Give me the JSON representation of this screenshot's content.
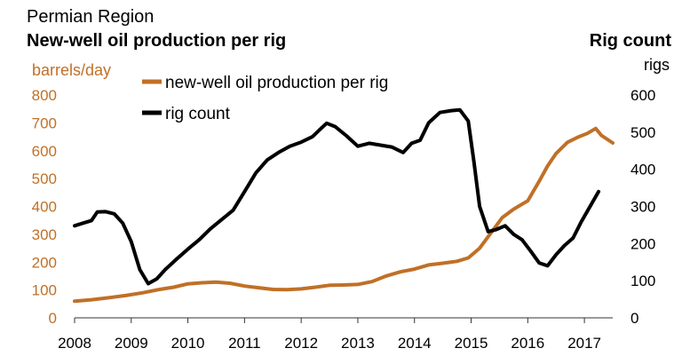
{
  "region": "Permian Region",
  "chart_data": {
    "type": "line",
    "title": "New-well oil production per rig",
    "right_title": "Rig count",
    "left_unit": "barrels/day",
    "right_unit": "rigs",
    "left_axis": {
      "min": 0,
      "max": 800,
      "ticks": [
        "0",
        "100",
        "200",
        "300",
        "400",
        "500",
        "600",
        "700",
        "800"
      ]
    },
    "right_axis": {
      "min": 0,
      "max": 600,
      "ticks": [
        "0",
        "100",
        "200",
        "300",
        "400",
        "500",
        "600"
      ]
    },
    "x_axis": {
      "min": 2008,
      "max": 2017.5,
      "ticks": [
        "2008",
        "2009",
        "2010",
        "2011",
        "2012",
        "2013",
        "2014",
        "2015",
        "2016",
        "2017"
      ]
    },
    "grid": false,
    "legend_position": "top-center",
    "series": [
      {
        "name": "new-well oil production per rig",
        "axis": "left",
        "color": "#c07027",
        "points": [
          [
            2008.0,
            60
          ],
          [
            2008.3,
            65
          ],
          [
            2008.6,
            72
          ],
          [
            2008.9,
            80
          ],
          [
            2009.2,
            90
          ],
          [
            2009.5,
            102
          ],
          [
            2009.75,
            110
          ],
          [
            2010.0,
            122
          ],
          [
            2010.25,
            126
          ],
          [
            2010.5,
            128
          ],
          [
            2010.75,
            124
          ],
          [
            2011.0,
            114
          ],
          [
            2011.25,
            108
          ],
          [
            2011.5,
            102
          ],
          [
            2011.75,
            101
          ],
          [
            2012.0,
            104
          ],
          [
            2012.25,
            110
          ],
          [
            2012.5,
            117
          ],
          [
            2012.75,
            118
          ],
          [
            2013.0,
            120
          ],
          [
            2013.25,
            130
          ],
          [
            2013.5,
            150
          ],
          [
            2013.75,
            165
          ],
          [
            2014.0,
            175
          ],
          [
            2014.25,
            190
          ],
          [
            2014.5,
            196
          ],
          [
            2014.75,
            203
          ],
          [
            2014.95,
            215
          ],
          [
            2015.15,
            250
          ],
          [
            2015.35,
            305
          ],
          [
            2015.55,
            360
          ],
          [
            2015.75,
            390
          ],
          [
            2016.0,
            420
          ],
          [
            2016.2,
            490
          ],
          [
            2016.35,
            545
          ],
          [
            2016.5,
            590
          ],
          [
            2016.7,
            630
          ],
          [
            2016.9,
            650
          ],
          [
            2017.05,
            662
          ],
          [
            2017.2,
            680
          ],
          [
            2017.3,
            655
          ],
          [
            2017.5,
            628
          ]
        ]
      },
      {
        "name": "rig count",
        "axis": "right",
        "color": "#000000",
        "points": [
          [
            2008.0,
            248
          ],
          [
            2008.15,
            255
          ],
          [
            2008.3,
            262
          ],
          [
            2008.4,
            285
          ],
          [
            2008.55,
            286
          ],
          [
            2008.7,
            280
          ],
          [
            2008.85,
            255
          ],
          [
            2009.0,
            205
          ],
          [
            2009.15,
            130
          ],
          [
            2009.3,
            92
          ],
          [
            2009.45,
            105
          ],
          [
            2009.6,
            130
          ],
          [
            2009.8,
            158
          ],
          [
            2010.0,
            185
          ],
          [
            2010.2,
            210
          ],
          [
            2010.4,
            240
          ],
          [
            2010.6,
            265
          ],
          [
            2010.8,
            290
          ],
          [
            2011.0,
            340
          ],
          [
            2011.2,
            390
          ],
          [
            2011.4,
            425
          ],
          [
            2011.6,
            445
          ],
          [
            2011.8,
            462
          ],
          [
            2012.0,
            473
          ],
          [
            2012.2,
            488
          ],
          [
            2012.35,
            510
          ],
          [
            2012.45,
            524
          ],
          [
            2012.6,
            515
          ],
          [
            2012.8,
            490
          ],
          [
            2013.0,
            462
          ],
          [
            2013.2,
            470
          ],
          [
            2013.4,
            465
          ],
          [
            2013.6,
            460
          ],
          [
            2013.8,
            445
          ],
          [
            2013.95,
            470
          ],
          [
            2014.1,
            478
          ],
          [
            2014.25,
            525
          ],
          [
            2014.45,
            553
          ],
          [
            2014.65,
            558
          ],
          [
            2014.8,
            560
          ],
          [
            2014.95,
            530
          ],
          [
            2015.05,
            420
          ],
          [
            2015.15,
            300
          ],
          [
            2015.3,
            232
          ],
          [
            2015.45,
            238
          ],
          [
            2015.6,
            248
          ],
          [
            2015.75,
            225
          ],
          [
            2015.9,
            210
          ],
          [
            2016.05,
            180
          ],
          [
            2016.2,
            148
          ],
          [
            2016.35,
            140
          ],
          [
            2016.5,
            170
          ],
          [
            2016.65,
            195
          ],
          [
            2016.8,
            215
          ],
          [
            2016.95,
            260
          ],
          [
            2017.1,
            300
          ],
          [
            2017.25,
            340
          ]
        ]
      }
    ]
  }
}
